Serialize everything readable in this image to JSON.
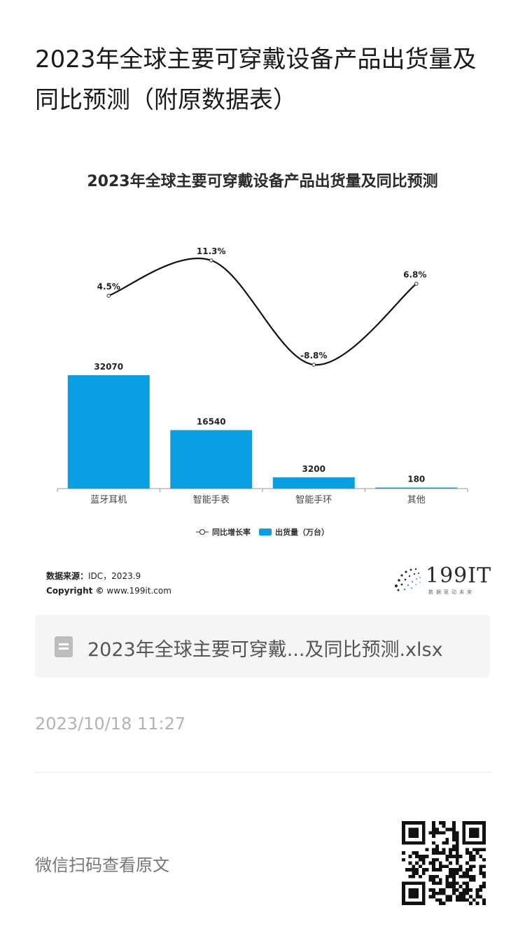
{
  "article": {
    "title": "2023年全球主要可穿戴设备产品出货量及同比预测（附原数据表）"
  },
  "chart_data": {
    "type": "bar",
    "title": "2023年全球主要可穿戴设备产品出货量及同比预测",
    "categories": [
      "蓝牙耳机",
      "智能手表",
      "智能手环",
      "其他"
    ],
    "series": [
      {
        "name": "出货量（万台）",
        "type": "bar",
        "values": [
          32070,
          16540,
          3200,
          180
        ],
        "color": "#0a9fe3"
      },
      {
        "name": "同比增长率",
        "type": "line",
        "values": [
          4.5,
          11.3,
          -8.8,
          6.8
        ],
        "unit": "%",
        "color": "#111111"
      }
    ],
    "data_labels": {
      "bars": [
        "32070",
        "16540",
        "3200",
        "180"
      ],
      "line": [
        "4.5%",
        "11.3%",
        "-8.8%",
        "6.8%"
      ]
    },
    "legend": {
      "placement": "bottom",
      "items": [
        "同比增长率",
        "出货量（万台）"
      ]
    },
    "source_label": "数据来源：",
    "source_value": "IDC，2023.9",
    "copyright_label": "Copyright ©",
    "copyright_value": "www.199it.com",
    "logo_text": "199IT",
    "logo_sub": "数据驱动未来"
  },
  "attachment": {
    "file_name": "2023年全球主要可穿戴...及同比预测.xlsx"
  },
  "meta": {
    "timestamp": "2023/10/18 11:27",
    "scan_text": "微信扫码查看原文"
  }
}
